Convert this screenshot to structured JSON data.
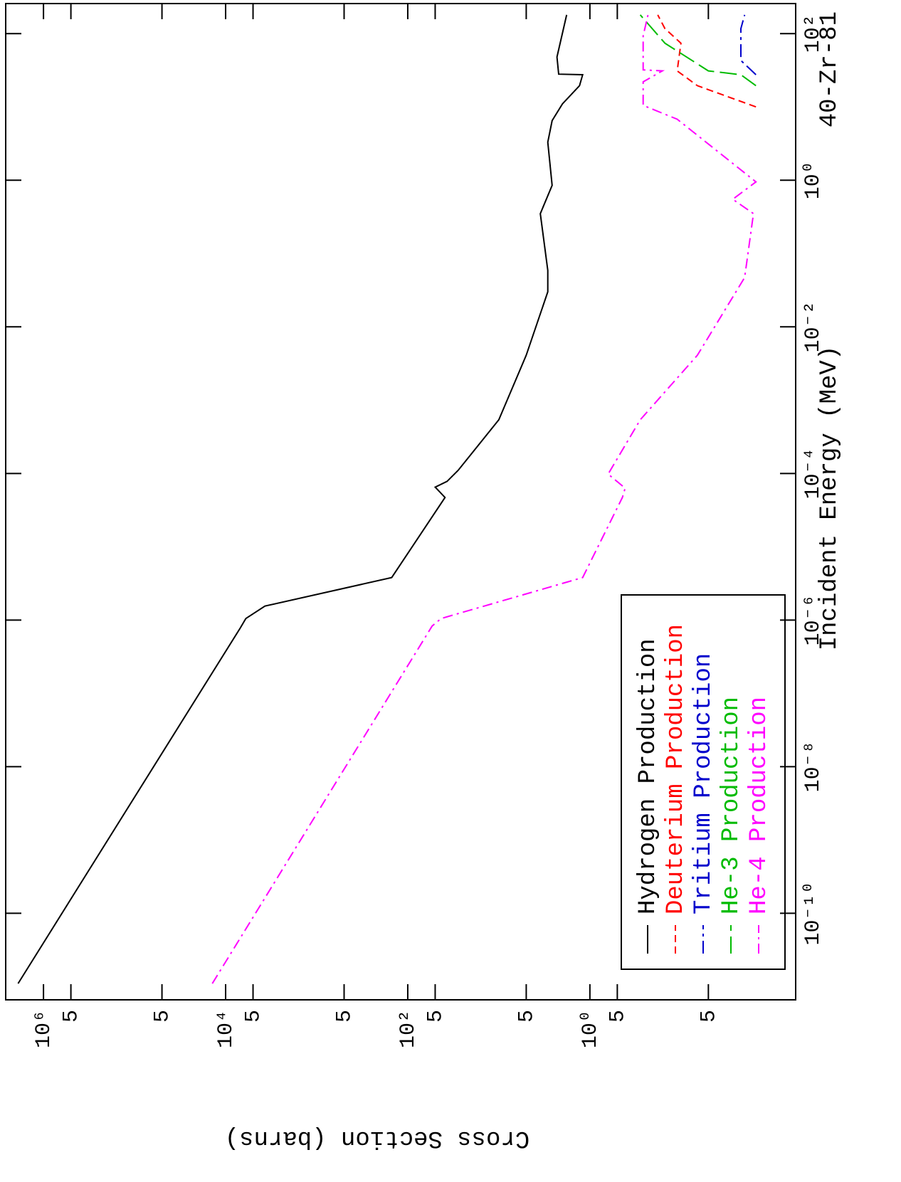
{
  "chart_data": {
    "type": "line",
    "title": "40-Zr-81",
    "x_label": "Incident Energy (MeV)",
    "y_label": "Cross Section (barns)",
    "x_log": true,
    "y_log": true,
    "xlim": [
      6.6e-12,
      257
    ],
    "ylim": [
      0.0055,
      2600000
    ],
    "xticks": [
      {
        "value": 1e-10,
        "label": "10⁻¹⁰"
      },
      {
        "value": 1e-08,
        "label": "10⁻⁸"
      },
      {
        "value": 1e-06,
        "label": "10⁻⁶"
      },
      {
        "value": 0.0001,
        "label": "10⁻⁴"
      },
      {
        "value": 0.01,
        "label": "10⁻²"
      },
      {
        "value": 1,
        "label": "10⁰"
      },
      {
        "value": 100,
        "label": "10²"
      }
    ],
    "yticks": [
      {
        "value": 1000000,
        "label": "10⁶"
      },
      {
        "value": 500000,
        "label": "5"
      },
      {
        "value": 50000,
        "label": "5"
      },
      {
        "value": 10000,
        "label": "10⁴"
      },
      {
        "value": 5000,
        "label": "5"
      },
      {
        "value": 500,
        "label": "5"
      },
      {
        "value": 100,
        "label": "10²"
      },
      {
        "value": 50,
        "label": "5"
      },
      {
        "value": 5,
        "label": "5"
      },
      {
        "value": 1,
        "label": "10⁰"
      },
      {
        "value": 0.5,
        "label": "5"
      },
      {
        "value": 0.05,
        "label": "5"
      }
    ],
    "series": [
      {
        "name": "Hydrogen Production",
        "color": "#000000",
        "x": [
          1.1e-11,
          7.8e-07,
          1.05e-06,
          1.55e-06,
          3.8e-06,
          4.7e-05,
          6.5e-05,
          7.8e-05,
          0.00011,
          0.00054,
          0.0041,
          0.03,
          0.059,
          0.35,
          0.85,
          3.3,
          6.5,
          11,
          19.5,
          27.5,
          28,
          48,
          180
        ],
        "values": [
          1900000,
          6900,
          6000,
          3700,
          150,
          39,
          50,
          37,
          28,
          10,
          5,
          2.9,
          2.9,
          3.5,
          2.6,
          2.9,
          2.6,
          2.0,
          1.3,
          1.2,
          2.2,
          2.3,
          1.8
        ]
      },
      {
        "name": "Deuterium Production",
        "color": "#ff0000",
        "x": [
          10,
          19.5,
          31,
          74,
          117,
          180
        ],
        "values": [
          0.015,
          0.066,
          0.11,
          0.1,
          0.15,
          0.18
        ]
      },
      {
        "name": "Tritium Production",
        "color": "#0000cc",
        "x": [
          27.5,
          43,
          117,
          180
        ],
        "values": [
          0.015,
          0.022,
          0.022,
          0.02
        ]
      },
      {
        "name": "He-3 Production",
        "color": "#00bb00",
        "x": [
          19.5,
          27.5,
          31,
          74,
          180
        ],
        "values": [
          0.015,
          0.022,
          0.05,
          0.15,
          0.28
        ]
      },
      {
        "name": "He-4 Production",
        "color": "#ff00ff",
        "x": [
          1.1e-11,
          8.3e-07,
          1.05e-06,
          3.8e-06,
          4.7e-05,
          6.3e-05,
          9.8e-05,
          0.00054,
          0.0041,
          0.047,
          0.35,
          0.55,
          0.95,
          6.8,
          10.5,
          22,
          31,
          32,
          93,
          180
        ],
        "values": [
          14000,
          54,
          43,
          1.2,
          0.44,
          0.41,
          0.63,
          0.28,
          0.066,
          0.02,
          0.016,
          0.027,
          0.015,
          0.11,
          0.26,
          0.26,
          0.16,
          0.26,
          0.26,
          0.23
        ]
      }
    ]
  }
}
